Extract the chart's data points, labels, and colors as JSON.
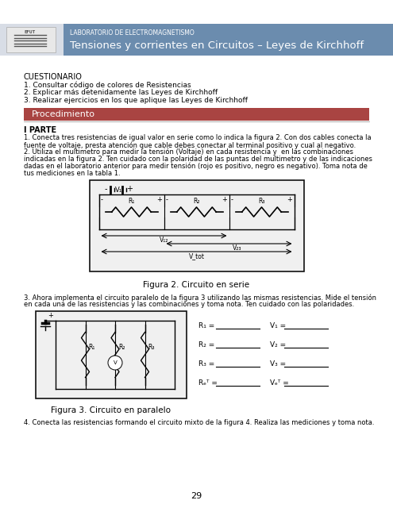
{
  "page_bg": "#ffffff",
  "header_bg": "#6b8cae",
  "header_small_text": "LABORATORIO DE ELECTROMAGNETISMO",
  "header_large_text": "Tensiones y corrientes en Circuitos – Leyes de Kirchhoff",
  "header_small_color": "#ffffff",
  "header_large_color": "#ffffff",
  "section_bar_color": "#a94442",
  "section_bar_text": "Procedimiento",
  "section_bar_text_color": "#ffffff",
  "cuestionario_title": "CUESTIONARIO",
  "cuestionario_items": [
    "1. Consultar código de colores de Resistencias",
    "2. Explicar más detenidamente las Leyes de Kirchhoff",
    "3. Realizar ejercicios en los que aplique las Leyes de Kirchhoff"
  ],
  "parte1_title": "I PARTE",
  "parte1_p1_lines": [
    "1. Conecta tres resistencias de igual valor en serie como lo indica la figura 2. Con dos cables conecta la",
    "fuente de voltaje, presta atención que cable debes conectar al terminal positivo y cual al negativo."
  ],
  "parte1_p2_lines": [
    "2. Utiliza el multimetro para medir la tensión (Voltaje) en cada resistencia y  en las combinaciones",
    "indicadas en la figura 2. Ten cuidado con la polaridad de las puntas del multimetro y de las indicaciones",
    "dadas en el laboratorio anterior para medir tensión (rojo es positivo, negro es negativo). Toma nota de",
    "tus mediciones en la tabla 1."
  ],
  "figura2_caption": "Figura 2. Circuito en serie",
  "parte1_p3_lines": [
    "3. Ahora implementa el circuito paralelo de la figura 3 utilizando las mismas resistencias. Mide el tensión",
    "en cada una de las resistencias y las combinaciones y toma nota. Ten cuidado con las polaridades."
  ],
  "figura3_caption": "Figura 3. Circuito en paralelo",
  "parte1_text4": "4. Conecta las resistencias formando el circuito mixto de la figura 4. Realiza las mediciones y toma nota.",
  "page_number": "29",
  "fig3_labels": [
    [
      "R₁ =",
      "V₁ ="
    ],
    [
      "R₂ =",
      "V₂ ="
    ],
    [
      "R₃ =",
      "V₃ ="
    ],
    [
      "Rₑᵀ =",
      "Vₑᵀ ="
    ]
  ]
}
